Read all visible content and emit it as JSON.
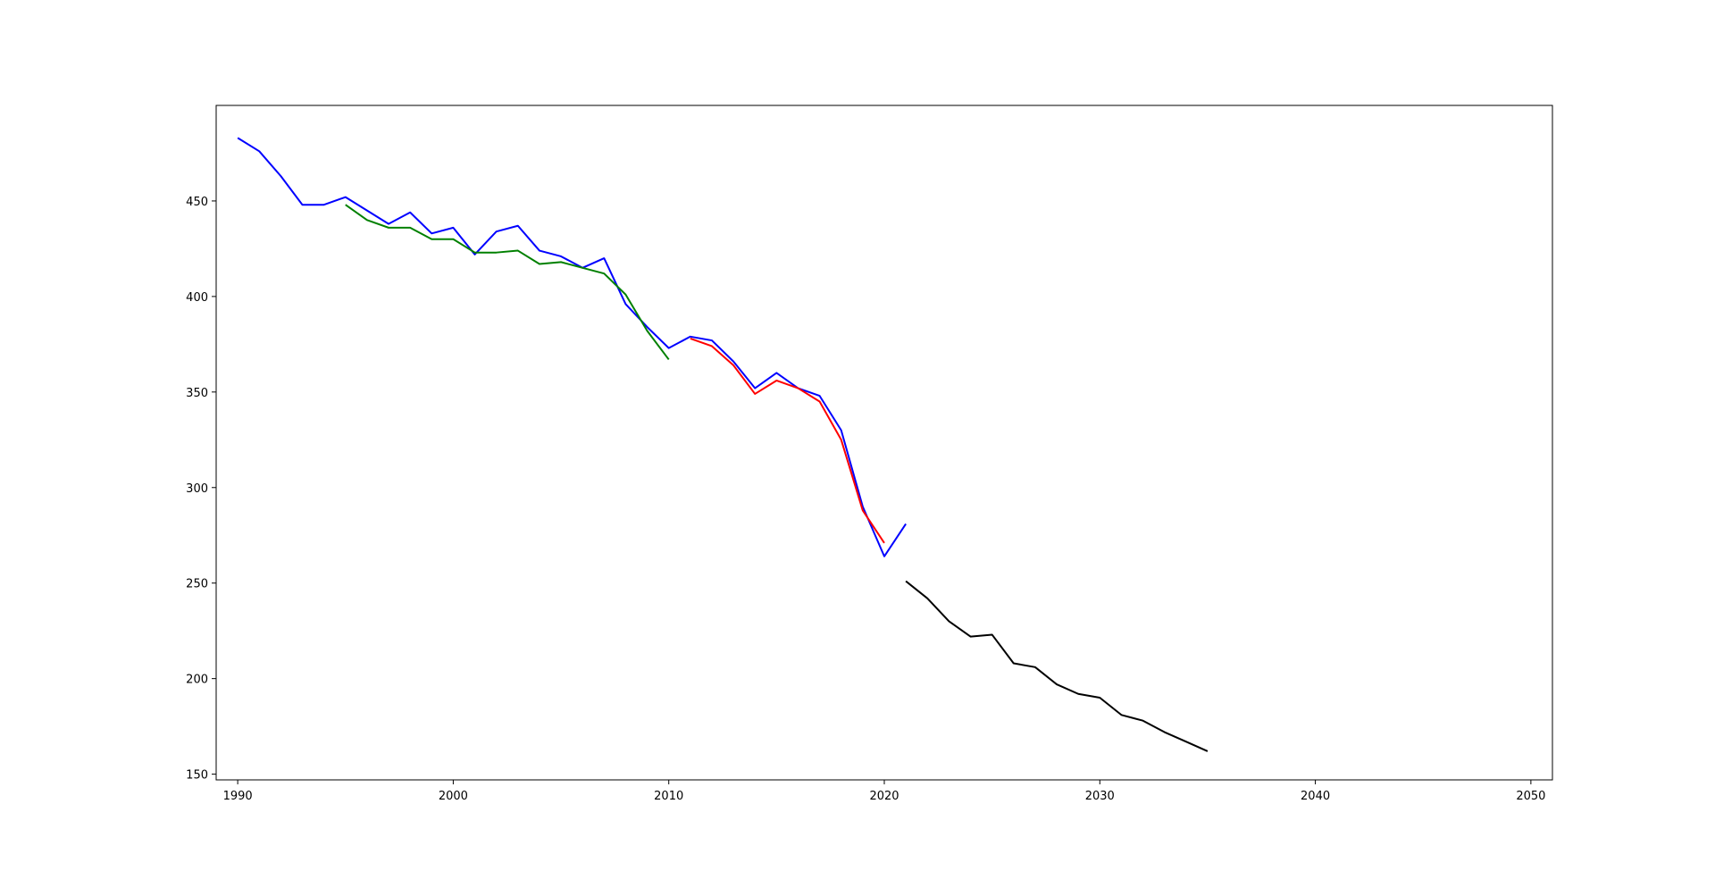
{
  "chart_data": {
    "type": "line",
    "title": "",
    "xlabel": "",
    "ylabel": "",
    "xlim": [
      1989,
      2051
    ],
    "ylim": [
      147,
      500
    ],
    "xticks": [
      1990,
      2000,
      2010,
      2020,
      2030,
      2040,
      2050
    ],
    "yticks": [
      150,
      200,
      250,
      300,
      350,
      400,
      450
    ],
    "grid": false,
    "legend": "none",
    "series": [
      {
        "color": "#0000ff",
        "x": [
          1990,
          1991,
          1992,
          1993,
          1994,
          1995,
          1996,
          1997,
          1998,
          1999,
          2000,
          2001,
          2002,
          2003,
          2004,
          2005,
          2006,
          2007,
          2008,
          2009,
          2010,
          2011,
          2012,
          2013,
          2014,
          2015,
          2016,
          2017,
          2018,
          2019,
          2020,
          2021
        ],
        "y": [
          483,
          476,
          463,
          448,
          448,
          452,
          445,
          438,
          444,
          433,
          436,
          422,
          434,
          437,
          424,
          421,
          415,
          420,
          396,
          384,
          373,
          379,
          377,
          366,
          352,
          360,
          352,
          348,
          330,
          290,
          264,
          281
        ]
      },
      {
        "color": "#008000",
        "x": [
          1995,
          1996,
          1997,
          1998,
          1999,
          2000,
          2001,
          2002,
          2003,
          2004,
          2005,
          2006,
          2007,
          2008,
          2009,
          2010
        ],
        "y": [
          448,
          440,
          436,
          436,
          430,
          430,
          423,
          423,
          424,
          417,
          418,
          415,
          412,
          401,
          382,
          367
        ]
      },
      {
        "color": "#ff0000",
        "x": [
          2011,
          2012,
          2013,
          2014,
          2015,
          2016,
          2017,
          2018,
          2019,
          2020
        ],
        "y": [
          378,
          374,
          364,
          349,
          356,
          352,
          345,
          325,
          288,
          271
        ]
      },
      {
        "color": "#000000",
        "x": [
          2021,
          2022,
          2023,
          2024,
          2025,
          2026,
          2027,
          2028,
          2029,
          2030,
          2031,
          2032,
          2033,
          2034,
          2035
        ],
        "y": [
          251,
          242,
          230,
          222,
          223,
          208,
          206,
          197,
          192,
          190,
          181,
          178,
          172,
          167,
          162
        ]
      }
    ]
  }
}
